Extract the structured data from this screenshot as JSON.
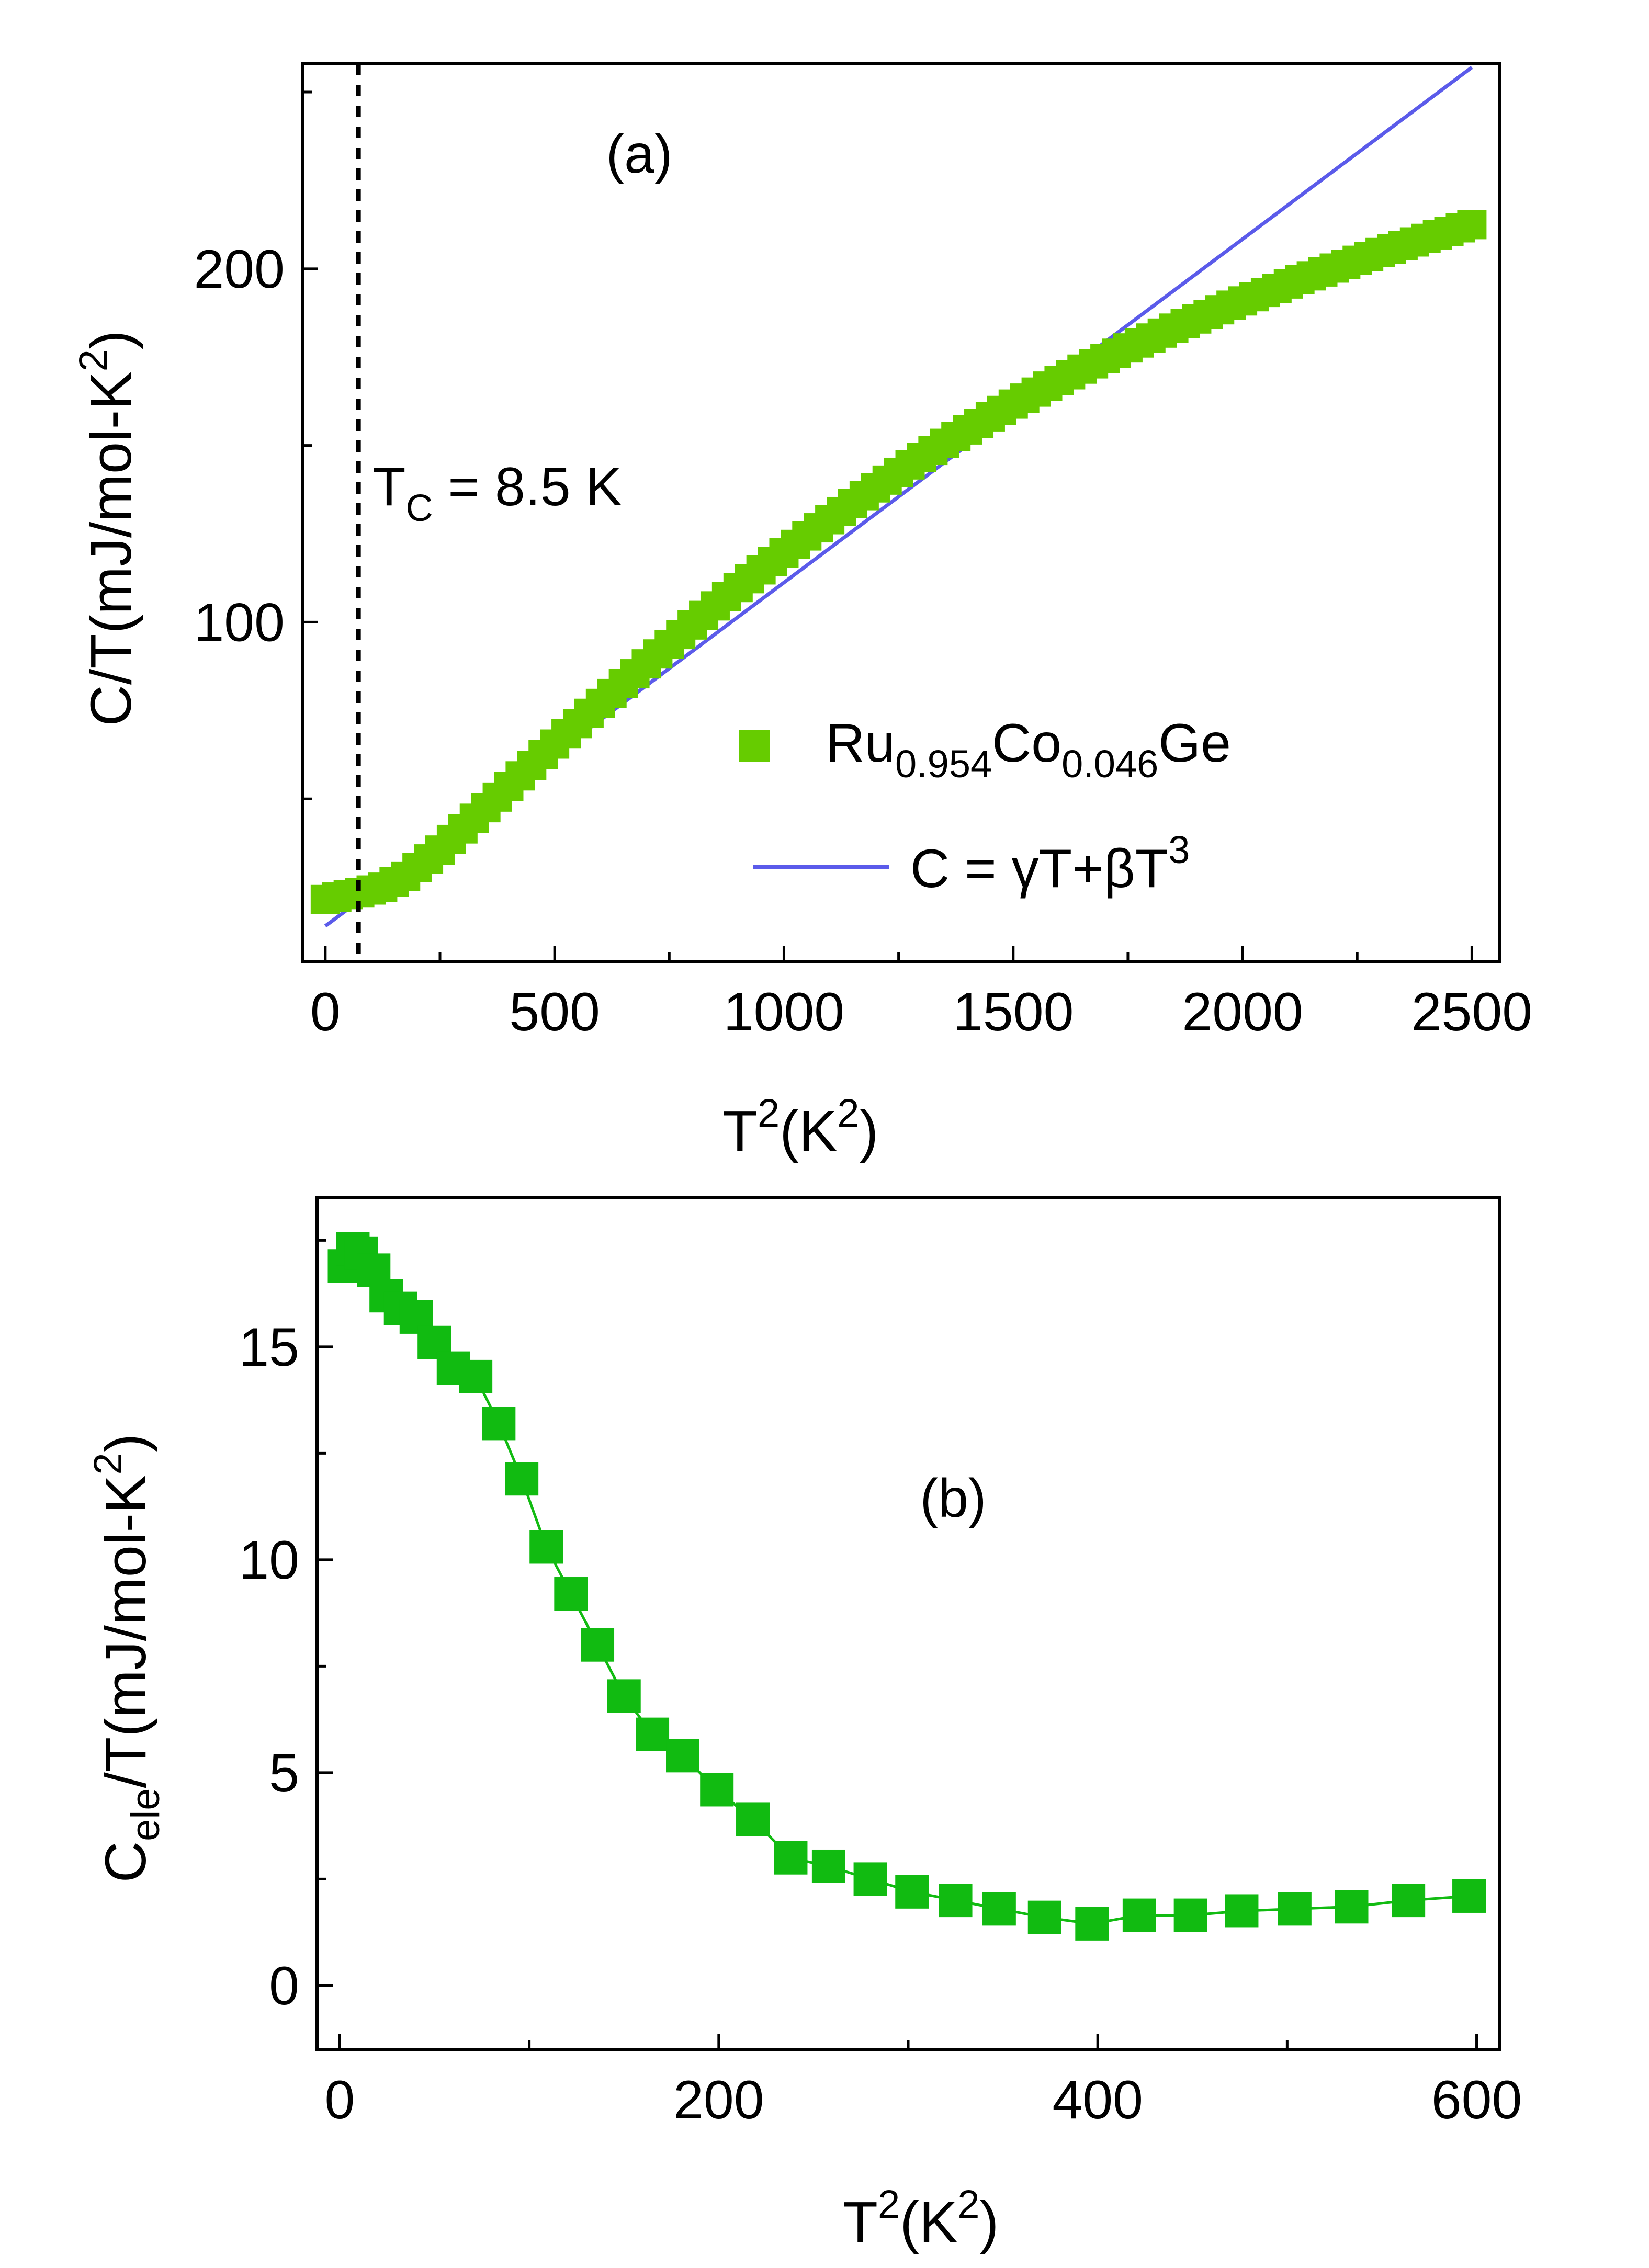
{
  "colors": {
    "marker_a": "#66cc00",
    "marker_b": "#11bb11",
    "fit_line": "#5b5bea",
    "axis": "#000000"
  },
  "chart_data": [
    {
      "type": "scatter",
      "panel": "(a)",
      "xlabel": "T²(K²)",
      "ylabel": "C/T(mJ/mol-K²)",
      "xlim": [
        -50,
        2560
      ],
      "ylim": [
        4,
        258
      ],
      "xticks": [
        0,
        500,
        1000,
        1500,
        2000,
        2500
      ],
      "yticks": [
        100,
        200
      ],
      "annotation": {
        "text": "T",
        "subscript": "C",
        "suffix": " = 8.5 K",
        "x_value": 72.25
      },
      "legend": {
        "location": "lower-right",
        "entries": [
          {
            "kind": "marker",
            "parts": [
              "Ru",
              "0.954",
              "Co",
              "0.046",
              "Ge"
            ]
          },
          {
            "kind": "line",
            "parts": [
              "C = γT+βT",
              "3"
            ]
          }
        ]
      },
      "series": [
        {
          "name": "Ru0.954Co0.046Ge",
          "style": "square-marker",
          "x": [
            0,
            25,
            50,
            75,
            100,
            125,
            150,
            175,
            200,
            225,
            250,
            275,
            300,
            325,
            350,
            375,
            400,
            425,
            450,
            475,
            500,
            525,
            550,
            575,
            600,
            625,
            650,
            675,
            700,
            725,
            750,
            775,
            800,
            825,
            850,
            875,
            900,
            925,
            950,
            975,
            1000,
            1025,
            1050,
            1075,
            1100,
            1125,
            1150,
            1175,
            1200,
            1225,
            1250,
            1275,
            1300,
            1325,
            1350,
            1375,
            1400,
            1425,
            1450,
            1475,
            1500,
            1525,
            1550,
            1575,
            1600,
            1625,
            1650,
            1675,
            1700,
            1725,
            1750,
            1775,
            1800,
            1825,
            1850,
            1875,
            1900,
            1925,
            1950,
            1975,
            2000,
            2025,
            2050,
            2075,
            2100,
            2125,
            2150,
            2175,
            2200,
            2225,
            2250,
            2275,
            2300,
            2325,
            2350,
            2375,
            2400,
            2425,
            2450,
            2475,
            2500
          ],
          "values": [
            21.5,
            22.2,
            22.9,
            23.5,
            24.2,
            25.0,
            26.5,
            28.0,
            30.5,
            33.0,
            35.5,
            38.5,
            41.5,
            44.5,
            47.5,
            50.5,
            53.5,
            56.5,
            59.5,
            62.5,
            65.5,
            68.5,
            71.3,
            74.2,
            77.0,
            79.8,
            82.6,
            85.4,
            88.2,
            91.0,
            93.7,
            96.5,
            99.2,
            101.9,
            104.6,
            107.2,
            109.8,
            112.3,
            114.8,
            117.2,
            119.6,
            122.0,
            124.4,
            126.7,
            129.0,
            131.3,
            133.6,
            135.8,
            138.0,
            140.2,
            142.4,
            144.5,
            146.6,
            148.6,
            150.6,
            152.5,
            154.4,
            156.3,
            158.1,
            159.9,
            161.7,
            163.4,
            165.1,
            166.8,
            168.4,
            170.0,
            171.6,
            173.1,
            174.6,
            176.1,
            177.6,
            179.0,
            180.4,
            181.8,
            183.2,
            184.5,
            185.8,
            187.1,
            188.4,
            189.7,
            190.9,
            192.1,
            193.3,
            194.5,
            195.7,
            196.9,
            198.0,
            199.1,
            200.2,
            201.3,
            202.4,
            203.5,
            204.6,
            205.6,
            206.6,
            207.6,
            208.6,
            209.6,
            210.6,
            211.6,
            212.5
          ]
        },
        {
          "name": "C = γT+βT³",
          "style": "line",
          "x": [
            0,
            2500
          ],
          "values": [
            14,
            257
          ]
        }
      ]
    },
    {
      "type": "line",
      "panel": "(b)",
      "xlabel": "T²(K²)",
      "ylabel": "C_ele/T(mJ/mol-K²)",
      "xlim": [
        -12,
        612
      ],
      "ylim": [
        -1.5,
        18.5
      ],
      "xticks": [
        0,
        200,
        400,
        600
      ],
      "yticks": [
        0,
        5,
        10,
        15
      ],
      "series": [
        {
          "name": "Cele/T",
          "style": "line-with-square-markers",
          "x": [
            2.5,
            6.9,
            11.3,
            17.9,
            24.5,
            32.1,
            40.4,
            49.9,
            60.0,
            71.7,
            83.9,
            96.0,
            109.0,
            122.0,
            136.0,
            150.0,
            165.0,
            181.0,
            199.0,
            218.0,
            238.0,
            258.0,
            280.0,
            302.0,
            325.0,
            348.0,
            372.0,
            397.0,
            422.0,
            449.0,
            476.0,
            504.0,
            534.0,
            564.0,
            596.0
          ],
          "values": [
            16.9,
            17.3,
            17.2,
            16.8,
            16.2,
            15.9,
            15.7,
            15.1,
            14.5,
            14.3,
            13.2,
            11.9,
            10.3,
            9.2,
            8.0,
            6.8,
            5.9,
            5.4,
            4.6,
            3.9,
            3.0,
            2.8,
            2.5,
            2.2,
            2.0,
            1.8,
            1.6,
            1.45,
            1.65,
            1.65,
            1.75,
            1.8,
            1.85,
            2.0,
            2.1
          ]
        }
      ]
    }
  ]
}
